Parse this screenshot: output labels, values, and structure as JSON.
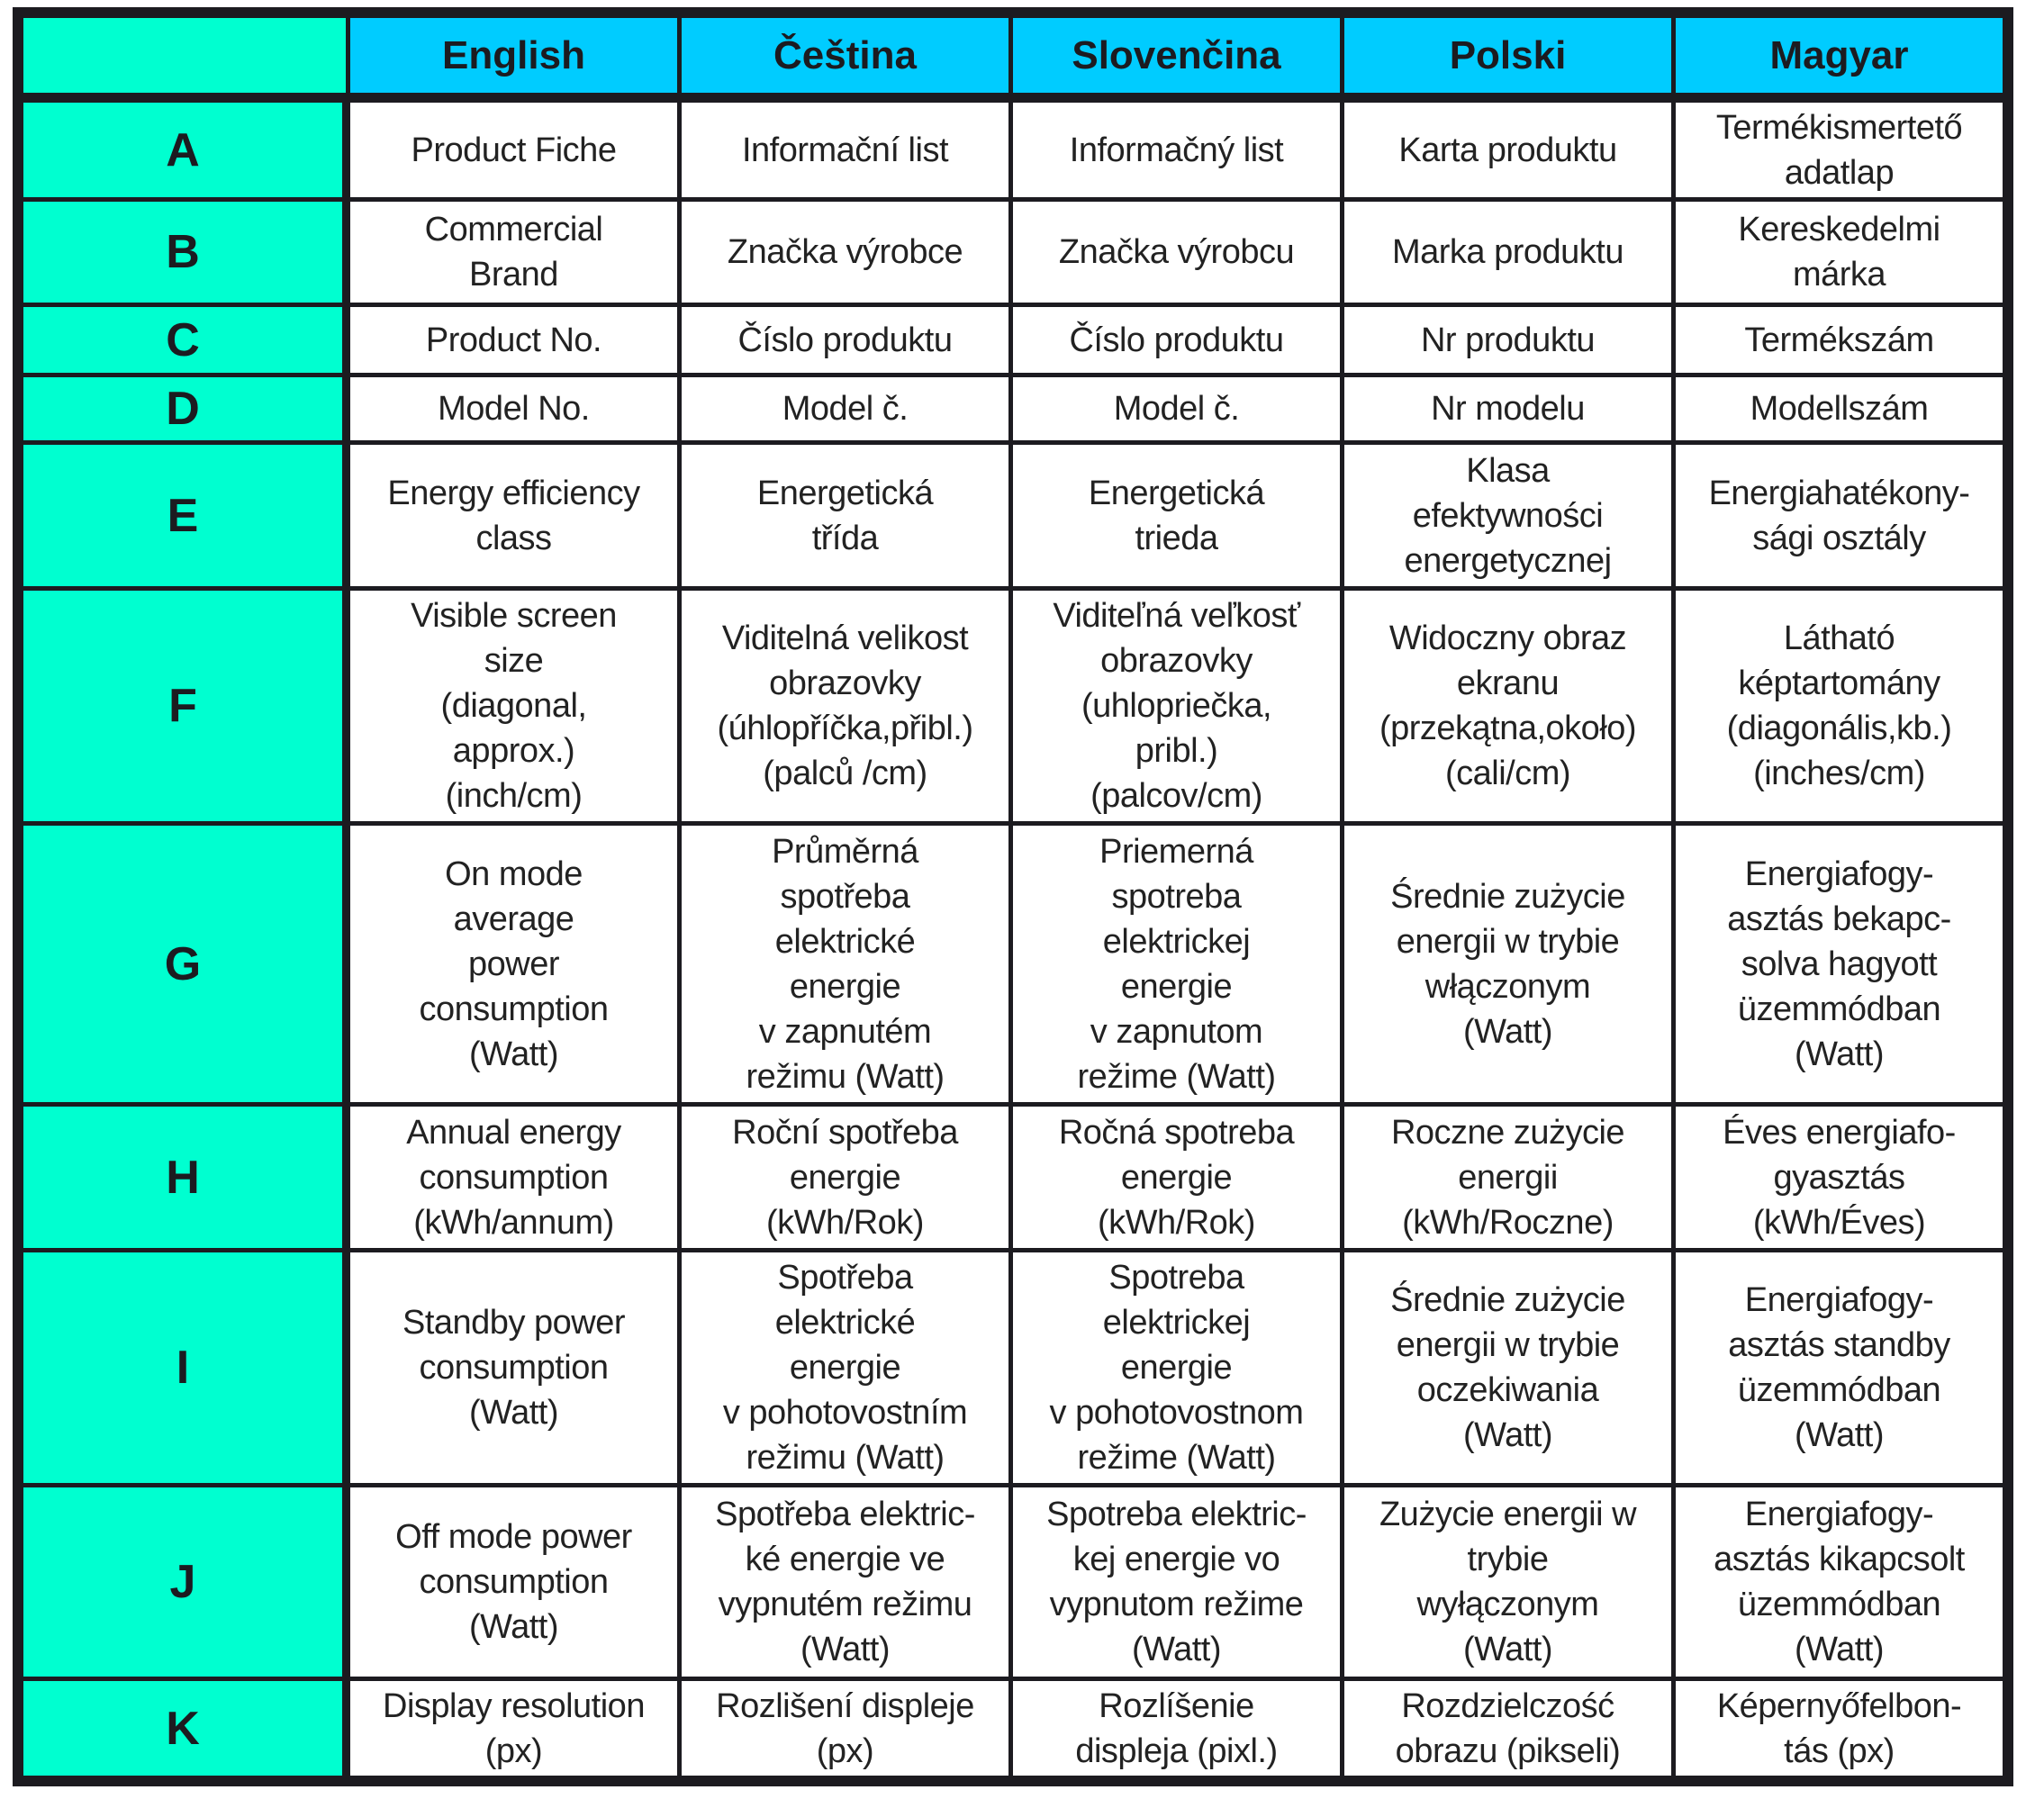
{
  "colors": {
    "header_blue": "#00ccff",
    "row_label_teal": "#00ffd0",
    "border": "#1c1b20"
  },
  "header": {
    "corner": "",
    "languages": [
      "English",
      "Čeština",
      "Slovenčina",
      "Polski",
      "Magyar"
    ]
  },
  "rows": [
    {
      "letter": "A",
      "cells": [
        "Product Fiche",
        "Informační list",
        "Informačný list",
        "Karta produktu",
        "Termékismertető\nadatlap"
      ]
    },
    {
      "letter": "B",
      "cells": [
        "Commercial\nBrand",
        "Značka výrobce",
        "Značka výrobcu",
        "Marka produktu",
        "Kereskedelmi\nmárka"
      ]
    },
    {
      "letter": "C",
      "cells": [
        "Product No.",
        "Číslo produktu",
        "Číslo produktu",
        "Nr produktu",
        "Termékszám"
      ]
    },
    {
      "letter": "D",
      "cells": [
        "Model No.",
        "Model č.",
        "Model č.",
        "Nr modelu",
        "Modellszám"
      ]
    },
    {
      "letter": "E",
      "cells": [
        "Energy efficiency\nclass",
        "Energetická\ntřída",
        "Energetická\ntrieda",
        "Klasa\nefektywności\nenergetycznej",
        "Energiahatékony-\nsági osztály"
      ]
    },
    {
      "letter": "F",
      "cells": [
        "Visible screen\nsize\n(diagonal,\napprox.)\n(inch/cm)",
        "Viditelná velikost\nobrazovky\n(úhlopříčka,přibl.)\n(palců /cm)",
        "Viditeľná veľkosť\nobrazovky\n(uhlopriečka,\npribl.)\n(palcov/cm)",
        "Widoczny obraz\nekranu\n(przekątna,około)\n(cali/cm)",
        "Látható\nképtartomány\n(diagonális,kb.)\n(inches/cm)"
      ]
    },
    {
      "letter": "G",
      "cells": [
        "On mode\naverage\npower\nconsumption\n(Watt)",
        "Průměrná\nspotřeba\nelektrické\nenergie\nv zapnutém\nrežimu (Watt)",
        "Priemerná\nspotreba\nelektrickej\nenergie\nv zapnutom\nrežime (Watt)",
        "Średnie zużycie\nenergii w trybie\nwłączonym\n(Watt)",
        "Energiafogy-\nasztás bekapc-\nsolva hagyott\nüzemmódban\n(Watt)"
      ]
    },
    {
      "letter": "H",
      "cells": [
        "Annual energy\nconsumption\n(kWh/annum)",
        "Roční spotřeba\nenergie\n(kWh/Rok)",
        "Ročná spotreba\nenergie\n(kWh/Rok)",
        "Roczne zużycie\nenergii\n(kWh/Roczne)",
        "Éves energiafo-\ngyasztás\n(kWh/Éves)"
      ]
    },
    {
      "letter": "I",
      "cells": [
        "Standby power\nconsumption\n(Watt)",
        "Spotřeba\nelektrické\nenergie\nv pohotovostním\nrežimu (Watt)",
        "Spotreba\nelektrickej\nenergie\nv pohotovostnom\nrežime (Watt)",
        "Średnie zużycie\nenergii w trybie\noczekiwania\n(Watt)",
        "Energiafogy-\nasztás standby\nüzemmódban\n(Watt)"
      ]
    },
    {
      "letter": "J",
      "cells": [
        "Off mode power\nconsumption\n(Watt)",
        "Spotřeba elektric-\nké energie ve\nvypnutém režimu\n(Watt)",
        "Spotreba elektric-\nkej energie vo\nvypnutom režime\n(Watt)",
        "Zużycie energii w\ntrybie\nwyłączonym\n(Watt)",
        "Energiafogy-\nasztás kikapcsolt\nüzemmódban\n(Watt)"
      ]
    },
    {
      "letter": "K",
      "cells": [
        "Display resolution\n(px)",
        "Rozlišení displeje\n(px)",
        "Rozlíšenie\ndispleja (pixl.)",
        "Rozdzielczość\nobrazu (pikseli)",
        "Képernyőfelbon-\ntás (px)"
      ]
    }
  ]
}
